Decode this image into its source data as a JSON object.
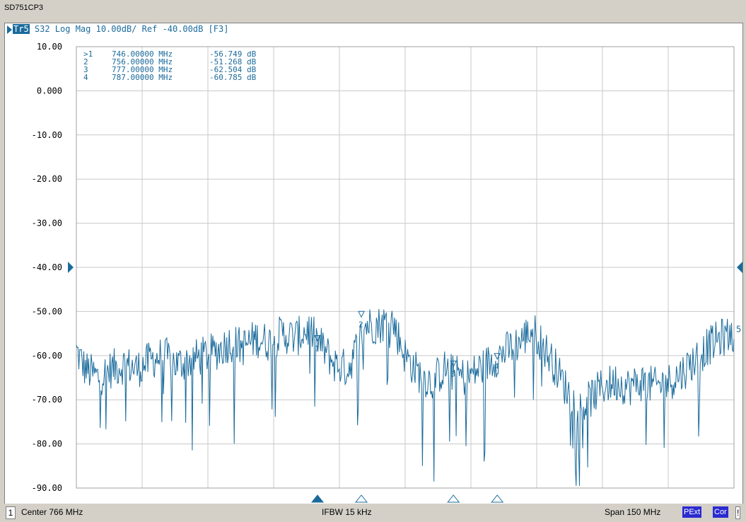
{
  "window": {
    "title": "SD751CP3"
  },
  "trace_header": {
    "tag": "Tr5",
    "text": " S32 Log Mag 10.00dB/ Ref -40.00dB [F3]"
  },
  "status": {
    "channel": "1",
    "center": "Center 766 MHz",
    "ifbw": "IFBW 15 kHz",
    "span": "Span 150 MHz",
    "pext": "PExt",
    "cor": "Cor",
    "flag": "!"
  },
  "colors": {
    "trace": "#1a6b9c",
    "grid": "#c8c8c8",
    "background": "#ffffff"
  },
  "chart_data": {
    "type": "line",
    "xlim": [
      691,
      841
    ],
    "ylim": [
      -90,
      10
    ],
    "ref_level": -40,
    "y_ticks": [
      "10.00",
      "0.000",
      "-10.00",
      "-20.00",
      "-30.00",
      "-40.00",
      "-50.00",
      "-60.00",
      "-70.00",
      "-80.00",
      "-90.00"
    ],
    "x_divisions": 10,
    "trace_label": "5",
    "markers": [
      {
        "id": "1",
        "active": true,
        "prefix": ">1",
        "freq_mhz": 746,
        "freq": "746.00000 MHz",
        "value_db": -56.749,
        "value": "-56.749 dB"
      },
      {
        "id": "2",
        "active": false,
        "prefix": "2",
        "freq_mhz": 756,
        "freq": "756.00000 MHz",
        "value_db": -51.268,
        "value": "-51.268 dB"
      },
      {
        "id": "3",
        "active": false,
        "prefix": "3",
        "freq_mhz": 777,
        "freq": "777.00000 MHz",
        "value_db": -62.504,
        "value": "-62.504 dB"
      },
      {
        "id": "4",
        "active": false,
        "prefix": "4",
        "freq_mhz": 787,
        "freq": "787.00000 MHz",
        "value_db": -60.785,
        "value": "-60.785 dB"
      }
    ],
    "envelope": [
      [
        691,
        -59
      ],
      [
        693,
        -63
      ],
      [
        696,
        -65
      ],
      [
        699,
        -63
      ],
      [
        702,
        -62
      ],
      [
        705,
        -63
      ],
      [
        708,
        -61
      ],
      [
        711,
        -60
      ],
      [
        714,
        -62
      ],
      [
        717,
        -61
      ],
      [
        720,
        -60
      ],
      [
        723,
        -59
      ],
      [
        726,
        -57
      ],
      [
        729,
        -58
      ],
      [
        732,
        -56
      ],
      [
        735,
        -57
      ],
      [
        738,
        -55
      ],
      [
        741,
        -56
      ],
      [
        744,
        -54
      ],
      [
        747,
        -58
      ],
      [
        750,
        -62
      ],
      [
        753,
        -63
      ],
      [
        755,
        -58
      ],
      [
        757,
        -53
      ],
      [
        760,
        -53
      ],
      [
        763,
        -52
      ],
      [
        766,
        -60
      ],
      [
        769,
        -64
      ],
      [
        772,
        -66
      ],
      [
        775,
        -63
      ],
      [
        777,
        -64
      ],
      [
        780,
        -65
      ],
      [
        783,
        -63
      ],
      [
        786,
        -61
      ],
      [
        789,
        -59
      ],
      [
        792,
        -57
      ],
      [
        795,
        -54
      ],
      [
        797,
        -57
      ],
      [
        800,
        -62
      ],
      [
        803,
        -68
      ],
      [
        806,
        -72
      ],
      [
        808,
        -70
      ],
      [
        811,
        -67
      ],
      [
        814,
        -66
      ],
      [
        817,
        -67
      ],
      [
        820,
        -66
      ],
      [
        823,
        -67
      ],
      [
        826,
        -66
      ],
      [
        829,
        -64
      ],
      [
        832,
        -61
      ],
      [
        835,
        -58
      ],
      [
        838,
        -56
      ],
      [
        841,
        -55
      ]
    ]
  }
}
